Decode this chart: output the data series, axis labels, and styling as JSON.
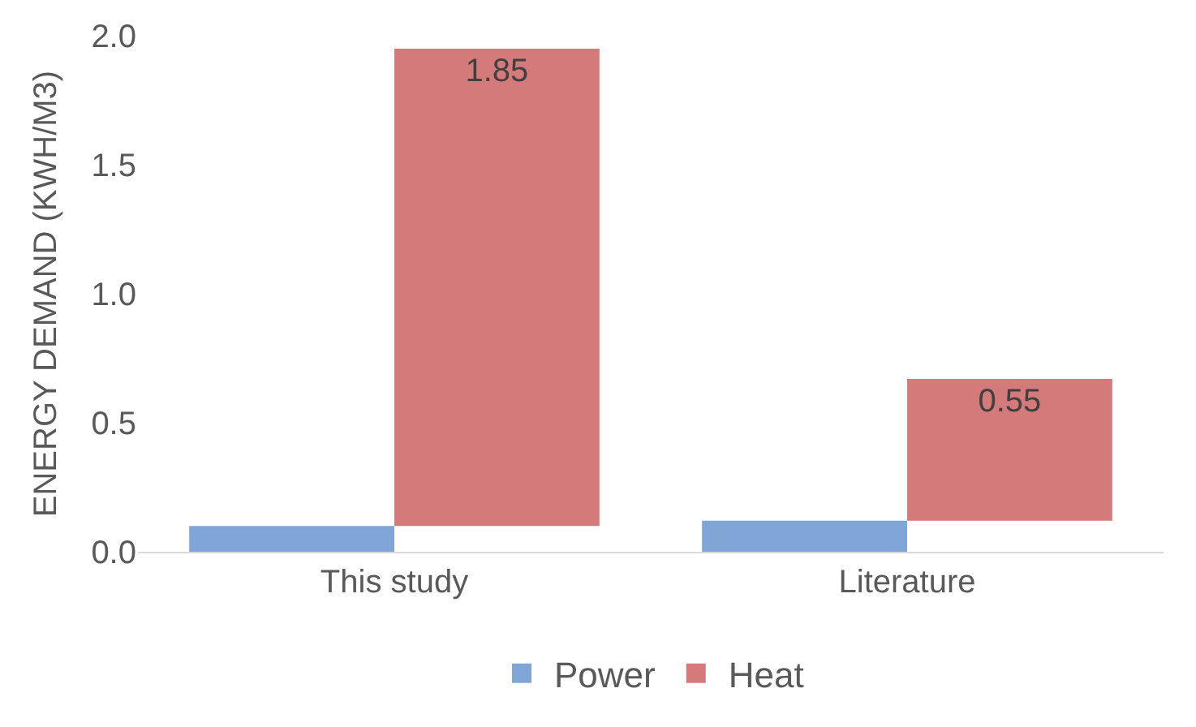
{
  "chart_data": {
    "type": "bar",
    "categories": [
      "This study",
      "Literature"
    ],
    "ylabel": "ENERGY DEMAND (KWH/M3)",
    "series": [
      {
        "name": "Power",
        "color": "#7fa6d6",
        "values": [
          0.1,
          0.12
        ]
      },
      {
        "name": "Heat",
        "color": "#d47a7a",
        "values": [
          1.85,
          0.55
        ],
        "base": [
          0.1,
          0.12
        ],
        "value_labels": [
          "1.85",
          "0.55"
        ]
      }
    ],
    "ylim": [
      0,
      2.0
    ],
    "yticks": [
      {
        "value": 0,
        "label": "0.0"
      },
      {
        "value": 0.5,
        "label": "0.5"
      },
      {
        "value": 1.0,
        "label": "1.0"
      },
      {
        "value": 1.5,
        "label": "1.5"
      },
      {
        "value": 2.0,
        "label": "2.0"
      }
    ],
    "grid": false,
    "legend": "bottom"
  }
}
